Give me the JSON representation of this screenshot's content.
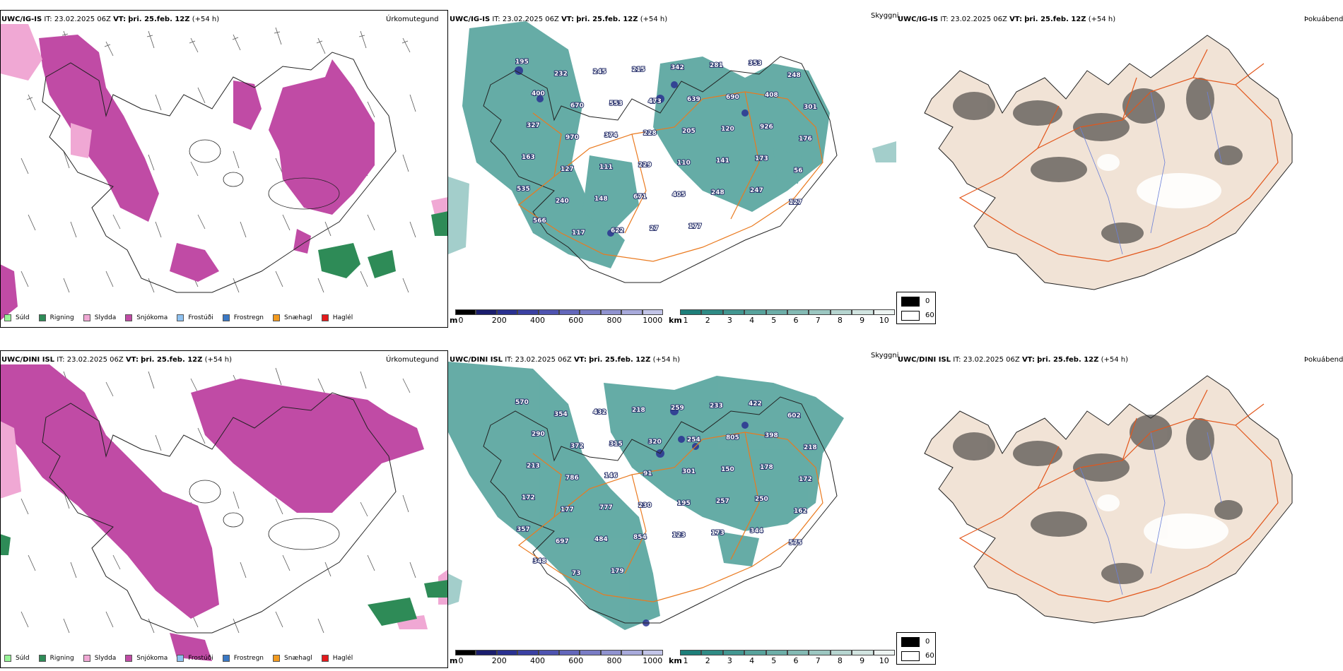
{
  "rows": [
    {
      "model": "UWC/IG-IS",
      "it_label": "IT:",
      "it_value": "23.02.2025 06Z",
      "vt_label": "VT:",
      "vt_value": "þri. 25.feb. 12Z",
      "lead": "(+54 h)",
      "precip_title": "Úrkomutegund",
      "vis_title": "Skyggni",
      "cloud_title": "Þokuábendi",
      "vis_labels": [
        "195",
        "232",
        "245",
        "215",
        "342",
        "281",
        "353",
        "248",
        "400",
        "670",
        "553",
        "473",
        "639",
        "690",
        "408",
        "301",
        "327",
        "970",
        "374",
        "228",
        "205",
        "120",
        "926",
        "176",
        "163",
        "127",
        "111",
        "229",
        "110",
        "141",
        "173",
        "56",
        "535",
        "240",
        "148",
        "671",
        "405",
        "248",
        "247",
        "127",
        "566",
        "117",
        "622",
        "27",
        "177"
      ]
    },
    {
      "model": "UWC/DINI ISL",
      "it_label": "IT:",
      "it_value": "23.02.2025 06Z",
      "vt_label": "VT:",
      "vt_value": "þri. 25.feb. 12Z",
      "lead": "(+54 h)",
      "precip_title": "Úrkomutegund",
      "vis_title": "Skyggni",
      "cloud_title": "Þokuábendi",
      "vis_labels": [
        "570",
        "354",
        "432",
        "218",
        "259",
        "233",
        "422",
        "602",
        "290",
        "372",
        "315",
        "320",
        "254",
        "805",
        "398",
        "218",
        "213",
        "786",
        "146",
        "91",
        "301",
        "150",
        "178",
        "172",
        "172",
        "177",
        "777",
        "230",
        "195",
        "257",
        "250",
        "162",
        "357",
        "697",
        "484",
        "854",
        "123",
        "173",
        "344",
        "575",
        "348",
        "73",
        "179"
      ]
    }
  ],
  "precip_legend": [
    {
      "label": "Súld",
      "color": "#98f598"
    },
    {
      "label": "Rigning",
      "color": "#2e8b57"
    },
    {
      "label": "Slydda",
      "color": "#f0a8d4"
    },
    {
      "label": "Snjókoma",
      "color": "#c04ba5"
    },
    {
      "label": "Frostúði",
      "color": "#8ec1f0"
    },
    {
      "label": "Frostregn",
      "color": "#3a78c4"
    },
    {
      "label": "Snæhagl",
      "color": "#f29a1f"
    },
    {
      "label": "Haglél",
      "color": "#e41a1c"
    }
  ],
  "altitude_bar": {
    "unit": "m",
    "ticks": [
      "0",
      "200",
      "400",
      "600",
      "800",
      "1000"
    ],
    "colors": [
      "#000000",
      "#1b1e6e",
      "#2a3191",
      "#3b41a3",
      "#4e53b0",
      "#6367bb",
      "#797cc5",
      "#9093d0",
      "#a8aadb",
      "#c2c4e7"
    ]
  },
  "visibility_bar": {
    "unit": "km",
    "ticks": [
      "1",
      "2",
      "3",
      "4",
      "5",
      "6",
      "7",
      "8",
      "9",
      "10"
    ],
    "colors": [
      "#1e7f7a",
      "#2f8b85",
      "#439791",
      "#58a39c",
      "#6daea8",
      "#84bab4",
      "#9cc7c1",
      "#b6d5d0",
      "#d1e4e0",
      "#edf4f2"
    ]
  },
  "cloud_key": {
    "black_label": "0",
    "white_label": "60",
    "black_color": "#000000",
    "white_color": "#ffffff"
  },
  "colors": {
    "snow": "#c04ba5",
    "sleet": "#f0a8d4",
    "rain": "#2e8b57",
    "vis": "#4b9e97",
    "road": "#ea7a1f",
    "land": "#f1e3d6",
    "coast": "#000000"
  }
}
